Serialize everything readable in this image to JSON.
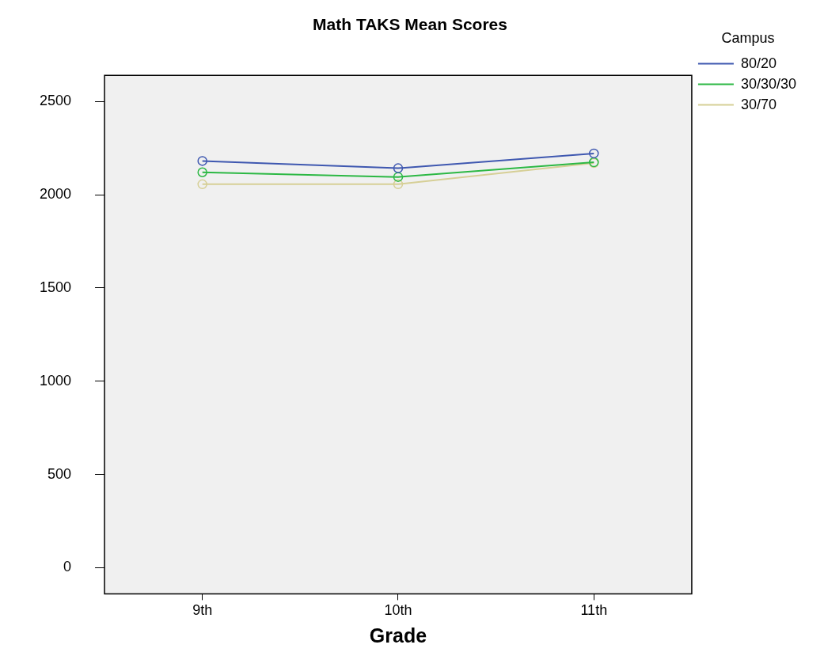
{
  "chart_data": {
    "type": "line",
    "title": "Math TAKS Mean Scores",
    "xlabel": "Grade",
    "legend_title": "Campus",
    "categories": [
      "9th",
      "10th",
      "11th"
    ],
    "series": [
      {
        "name": "80/20",
        "color": "#3f58b0",
        "values": [
          2181,
          2142,
          2221
        ]
      },
      {
        "name": "30/30/30",
        "color": "#2cb844",
        "values": [
          2120,
          2095,
          2174
        ]
      },
      {
        "name": "30/70",
        "color": "#d6cf96",
        "values": [
          2056,
          2056,
          2170
        ]
      }
    ],
    "ylim": [
      -140,
      2640
    ],
    "yticks": [
      0,
      500,
      1000,
      1500,
      2000,
      2500
    ],
    "grid": false,
    "legend": "right",
    "marker": "circle",
    "line_style": "solid"
  }
}
